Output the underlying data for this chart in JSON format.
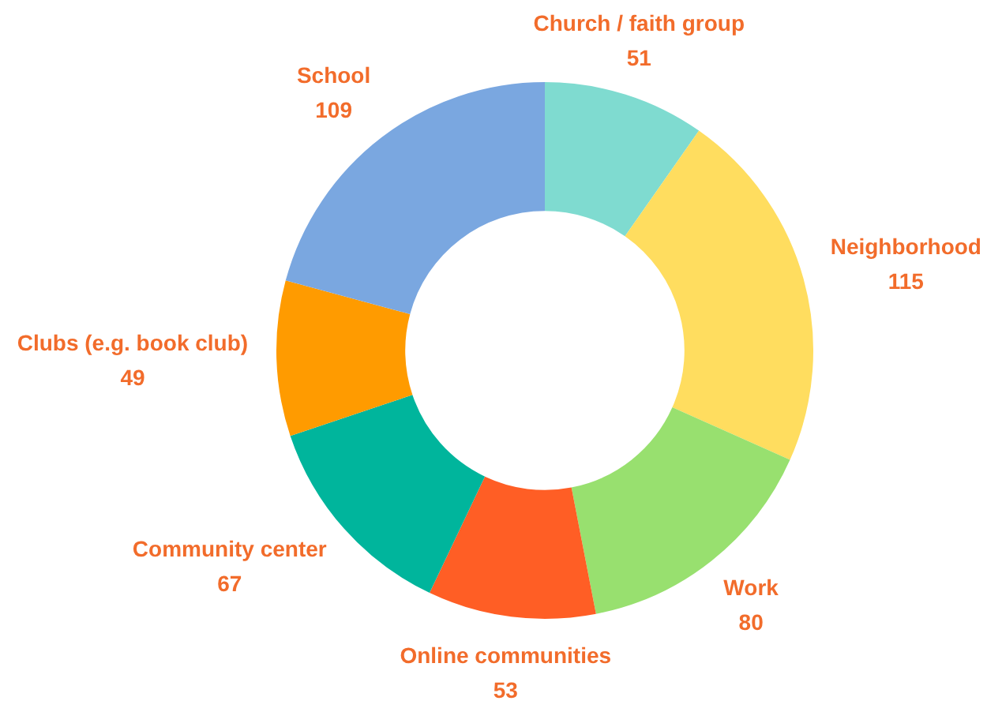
{
  "chart_data": {
    "type": "donut",
    "categories": [
      "Church / faith group",
      "Neighborhood",
      "Work",
      "Online communities",
      "Community center",
      "Clubs (e.g. book club)",
      "School"
    ],
    "values": [
      51,
      115,
      80,
      53,
      67,
      49,
      109
    ],
    "colors": [
      "#7fdbd0",
      "#ffdd5f",
      "#98e06f",
      "#ff5e25",
      "#00b59c",
      "#ff9b00",
      "#7aa7e0"
    ],
    "data_labels": true,
    "legend": false
  }
}
